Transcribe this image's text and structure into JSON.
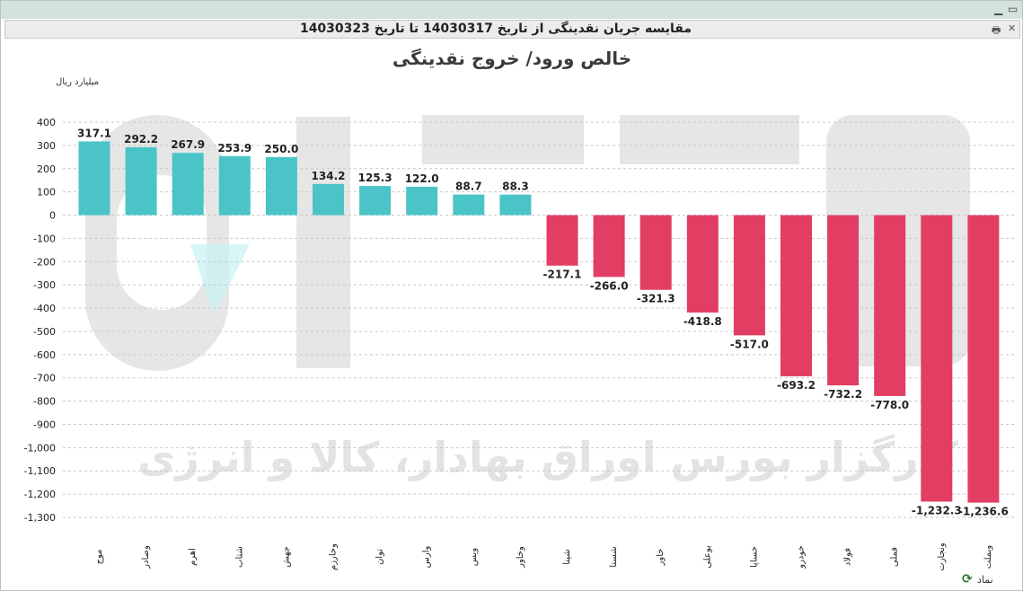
{
  "window": {
    "title": "مقایسه جریان نقدینگی از تاریخ 14030317 تا تاریخ 14030323",
    "minimize_glyph": "▁",
    "maximize_glyph": "▭"
  },
  "toolbar": {
    "print_icon": "print-icon",
    "close_icon": "close-icon",
    "print_glyph": "🖶",
    "close_glyph": "✕"
  },
  "footer": {
    "label": "نماد",
    "icon": "refresh-icon",
    "icon_glyph": "⟳"
  },
  "watermark": {
    "text": "کارگزار بورس اوراق بهادار، کالا و انرژی"
  },
  "colors": {
    "positive": "#4bc4c8",
    "negative": "#e23d63",
    "grid": "#c8c8c8",
    "text": "#222222",
    "watermark": "#e3e3e3"
  },
  "chart_data": {
    "type": "bar",
    "title": "خالص ورود/ خروج نقدینگی",
    "ylabel": "میلیارد ریال",
    "xlabel": "",
    "ylim": [
      -1300,
      400
    ],
    "yticks": [
      400,
      300,
      200,
      100,
      0,
      -100,
      -200,
      -300,
      -400,
      -500,
      -600,
      -700,
      -800,
      -900,
      -1000,
      -1100,
      -1200,
      -1300
    ],
    "ytick_labels": [
      "400",
      "300",
      "200",
      "100",
      "0",
      "-100",
      "-200",
      "-300",
      "-400",
      "-500",
      "-600",
      "-700",
      "-800",
      "-900",
      "-1,000",
      "-1,100",
      "-1,200",
      "-1,300"
    ],
    "grid": true,
    "categories": [
      "موج",
      "وصادر",
      "اهرم",
      "شتاب",
      "جهش",
      "وخارزم",
      "توان",
      "وارس",
      "ویس",
      "وخاور",
      "شپنا",
      "شستا",
      "خاور",
      "بوعلی",
      "خساپا",
      "خودرو",
      "فولاد",
      "فملی",
      "ونجارت",
      "وبملت"
    ],
    "values": [
      317.1,
      292.2,
      267.9,
      253.9,
      250.0,
      134.2,
      125.3,
      122.0,
      88.7,
      88.3,
      -217.1,
      -266.0,
      -321.3,
      -418.8,
      -517.0,
      -693.2,
      -732.2,
      -778.0,
      -1232.3,
      -1236.6
    ],
    "value_labels": [
      "317.1",
      "292.2",
      "267.9",
      "253.9",
      "250.0",
      "134.2",
      "125.3",
      "122.0",
      "88.7",
      "88.3",
      "-217.1",
      "-266.0",
      "-321.3",
      "-418.8",
      "-517.0",
      "-693.2",
      "-732.2",
      "-778.0",
      "-1,232.3",
      "-1,236.6"
    ]
  }
}
